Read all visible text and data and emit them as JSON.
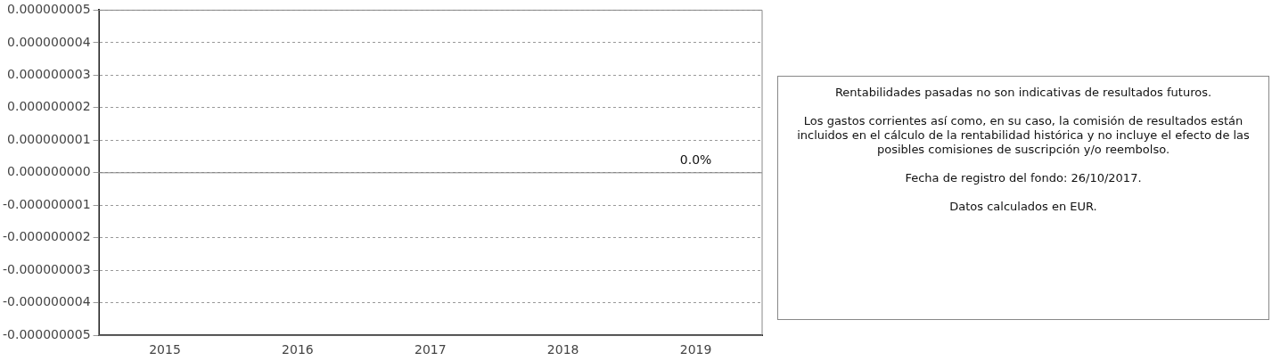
{
  "chart_data": {
    "type": "bar",
    "categories": [
      "2015",
      "2016",
      "2017",
      "2018",
      "2019"
    ],
    "values": [
      null,
      null,
      null,
      null,
      0
    ],
    "value_labels": [
      null,
      null,
      null,
      null,
      "0.0%"
    ],
    "ylim": [
      -5e-09,
      5e-09
    ],
    "yticks": [
      {
        "value": 5e-09,
        "label": "0.000000005"
      },
      {
        "value": 4e-09,
        "label": "0.000000004"
      },
      {
        "value": 3e-09,
        "label": "0.000000003"
      },
      {
        "value": 2e-09,
        "label": "0.000000002"
      },
      {
        "value": 1e-09,
        "label": "0.000000001"
      },
      {
        "value": 0,
        "label": "0.000000000"
      },
      {
        "value": -1e-09,
        "label": "-0.000000001"
      },
      {
        "value": -2e-09,
        "label": "-0.000000002"
      },
      {
        "value": -3e-09,
        "label": "-0.000000003"
      },
      {
        "value": -4e-09,
        "label": "-0.000000004"
      },
      {
        "value": -5e-09,
        "label": "-0.000000005"
      }
    ],
    "grid": "y",
    "legend": false,
    "ref_lines": [
      {
        "axis": "y",
        "value": 0,
        "color": "#808080"
      }
    ],
    "annotations": [
      "Rentabilidades pasadas no son indicativas de resultados futuros.",
      "Los gastos corrientes así como, en su caso, la comisión de resultados están incluidos en el cálculo de la rentabilidad histórica y no incluye el efecto de las posibles comisiones de suscripción y/o reembolso.",
      "Fecha de registro del fondo: 26/10/2017.",
      "Datos calculados en EUR."
    ]
  }
}
